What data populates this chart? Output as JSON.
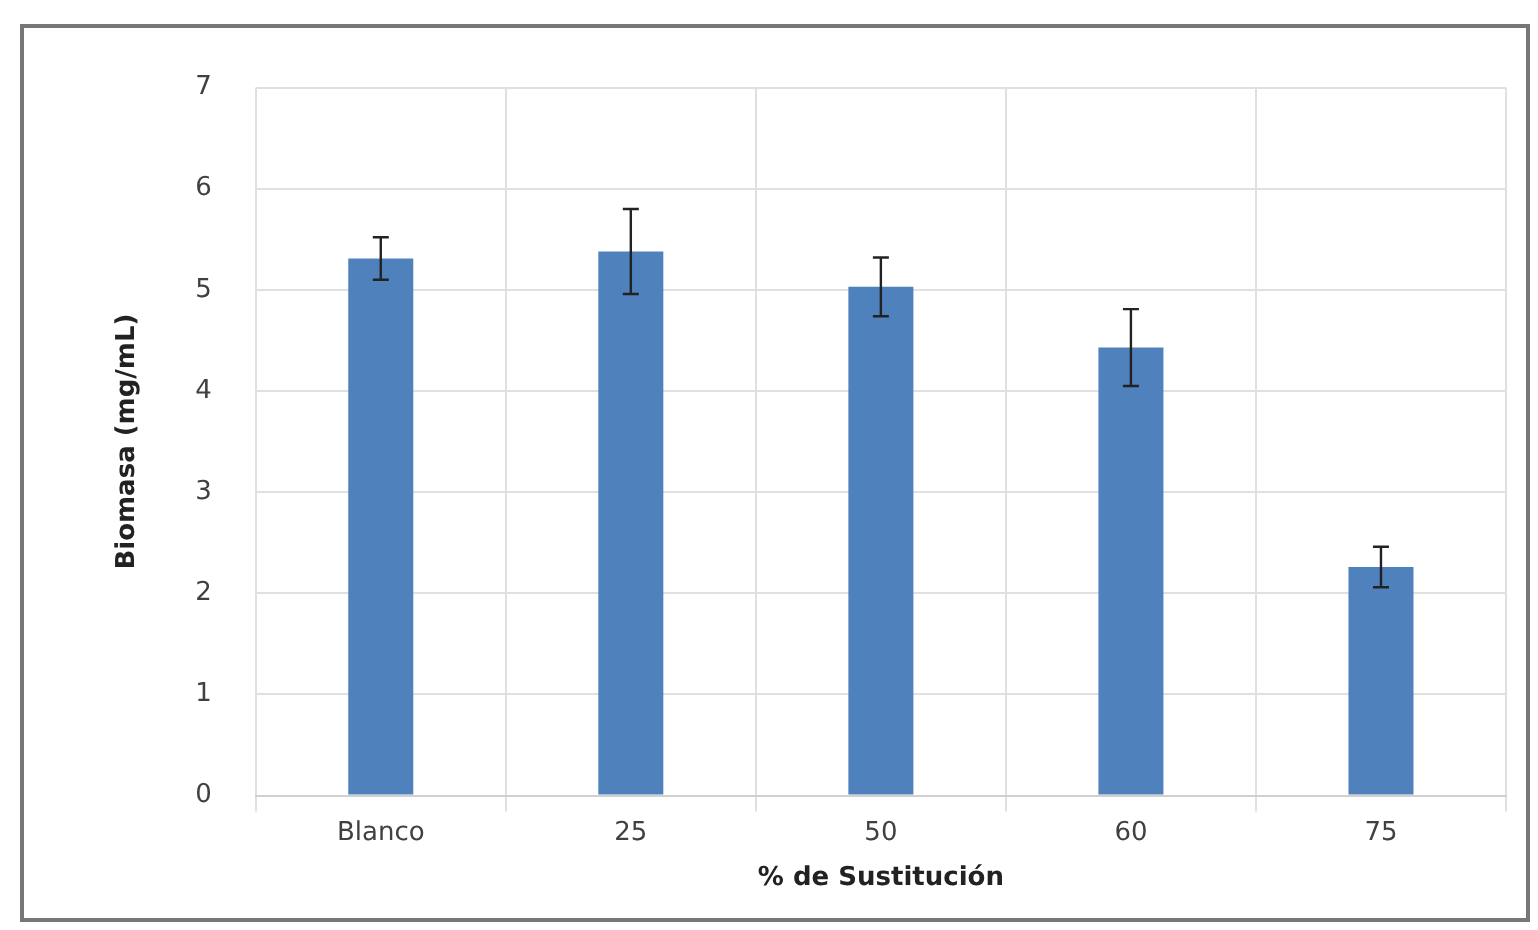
{
  "chart_data": {
    "type": "bar",
    "xlabel": "% de Sustitución",
    "ylabel": "Biomasa (mg/mL)",
    "categories": [
      "Blanco",
      "25",
      "50",
      "60",
      "75"
    ],
    "values": [
      5.31,
      5.38,
      5.03,
      4.43,
      2.26
    ],
    "errors": [
      0.21,
      0.42,
      0.29,
      0.38,
      0.2
    ],
    "color": "#4f81bd",
    "ylim": [
      0,
      7
    ],
    "yticks": [
      0,
      1,
      2,
      3,
      4,
      5,
      6,
      7
    ],
    "grid": true,
    "legend": false
  }
}
